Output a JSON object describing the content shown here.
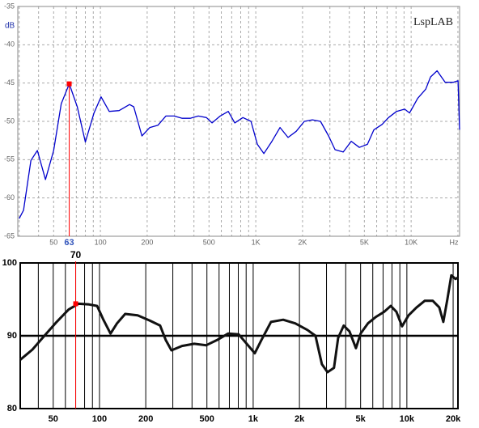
{
  "chart_data": [
    {
      "type": "line",
      "annotation": "LspLAB",
      "y_label": "dB",
      "x_unit": "Hz",
      "log_x": true,
      "grid": true,
      "x": [
        30,
        32,
        35.7,
        39.3,
        44.3,
        50,
        56,
        63,
        71,
        80,
        91,
        101,
        114,
        132,
        154,
        164,
        185,
        208,
        235,
        264,
        298,
        336,
        378,
        427,
        481,
        523,
        590,
        665,
        733,
        826,
        931,
        1024,
        1127,
        1271,
        1432,
        1614,
        1820,
        2054,
        2315,
        2609,
        2942,
        3237,
        3653,
        4118,
        4642,
        5233,
        5757,
        6496,
        7150,
        8059,
        9086,
        9770,
        11018,
        12417,
        13335,
        14690,
        16558,
        18663,
        20046,
        20500
      ],
      "series": [
        {
          "color": "#0000cc",
          "values": [
            -62.7,
            -61.6,
            -55.1,
            -53.8,
            -57.6,
            -53.8,
            -47.7,
            -45.1,
            -48.1,
            -52.7,
            -48.9,
            -46.8,
            -48.7,
            -48.6,
            -47.8,
            -48.1,
            -51.9,
            -50.8,
            -50.5,
            -49.3,
            -49.3,
            -49.6,
            -49.6,
            -49.3,
            -49.5,
            -50.2,
            -49.3,
            -48.7,
            -50.2,
            -49.5,
            -50.0,
            -53.0,
            -54.2,
            -52.6,
            -50.8,
            -52.1,
            -51.3,
            -50.0,
            -49.8,
            -50.0,
            -51.9,
            -53.7,
            -54.0,
            -52.6,
            -53.4,
            -53.0,
            -51.1,
            -50.4,
            -49.5,
            -48.7,
            -48.4,
            -48.9,
            -47.0,
            -45.8,
            -44.2,
            -43.4,
            -44.9,
            -44.9,
            -44.7,
            -51.1
          ]
        }
      ],
      "marker": {
        "x": 63,
        "y": -45.1,
        "color": "#ff0000"
      },
      "xlim": [
        29.4,
        20500
      ],
      "ylim": [
        -65,
        -35
      ],
      "xticks": [
        50,
        100,
        200,
        500,
        {
          "value": 1000,
          "label": "1K"
        },
        {
          "value": 2000,
          "label": "2K"
        },
        {
          "value": 5000,
          "label": "5K"
        },
        {
          "value": 10000,
          "label": "10K"
        }
      ],
      "xminor": [
        30,
        40,
        60,
        70,
        80,
        90,
        300,
        400,
        600,
        700,
        800,
        900,
        3000,
        4000,
        6000,
        7000,
        8000,
        9000,
        20000
      ],
      "yticks": [
        -35,
        -40,
        -45,
        -50,
        -55,
        -60,
        -65
      ]
    },
    {
      "type": "line",
      "log_x": true,
      "grid": true,
      "x": [
        30.5,
        36.6,
        43.8,
        52.6,
        63,
        73,
        85.6,
        96.5,
        106,
        118,
        130,
        147,
        177,
        212,
        248,
        270,
        294,
        344,
        413,
        495,
        580,
        687,
        804,
        907,
        1025,
        1130,
        1306,
        1567,
        1879,
        2254,
        2543,
        2800,
        3048,
        3358,
        3570,
        3883,
        4229,
        4660,
        5000,
        5580,
        6300,
        7130,
        7850,
        8550,
        9300,
        10250,
        11570,
        13060,
        14740,
        16250,
        17270,
        18340,
        19470,
        20700,
        21500
      ],
      "series": [
        {
          "color": "#111111",
          "values": [
            86.7,
            88.1,
            90.0,
            91.9,
            93.6,
            94.4,
            94.3,
            94.1,
            92.2,
            90.3,
            91.7,
            93.0,
            92.8,
            92.1,
            91.4,
            89.4,
            88.0,
            88.6,
            88.9,
            88.7,
            89.4,
            90.3,
            90.2,
            88.9,
            87.6,
            89.4,
            91.9,
            92.2,
            91.7,
            90.8,
            90.0,
            86.1,
            85.0,
            85.6,
            89.7,
            91.4,
            90.6,
            88.3,
            90.3,
            91.7,
            92.6,
            93.3,
            94.1,
            93.3,
            91.3,
            92.8,
            93.9,
            94.8,
            94.8,
            93.9,
            91.9,
            95.0,
            98.3,
            97.8,
            98.0
          ]
        }
      ],
      "marker": {
        "x": 70,
        "y": 94.4,
        "color": "#ff0000"
      },
      "xlim": [
        30.5,
        21500
      ],
      "ylim": [
        80,
        100
      ],
      "xticks": [
        50,
        100,
        200,
        500,
        {
          "value": 1000,
          "label": "1k"
        },
        {
          "value": 2000,
          "label": "2k"
        },
        {
          "value": 5000,
          "label": "5k"
        },
        {
          "value": 10000,
          "label": "10k"
        },
        {
          "value": 20000,
          "label": "20k"
        }
      ],
      "xminor": [
        40,
        60,
        70,
        80,
        90,
        300,
        400,
        600,
        700,
        800,
        900,
        3000,
        4000,
        6000,
        7000,
        8000,
        9000
      ],
      "yticks": [
        100,
        90,
        80
      ]
    }
  ]
}
